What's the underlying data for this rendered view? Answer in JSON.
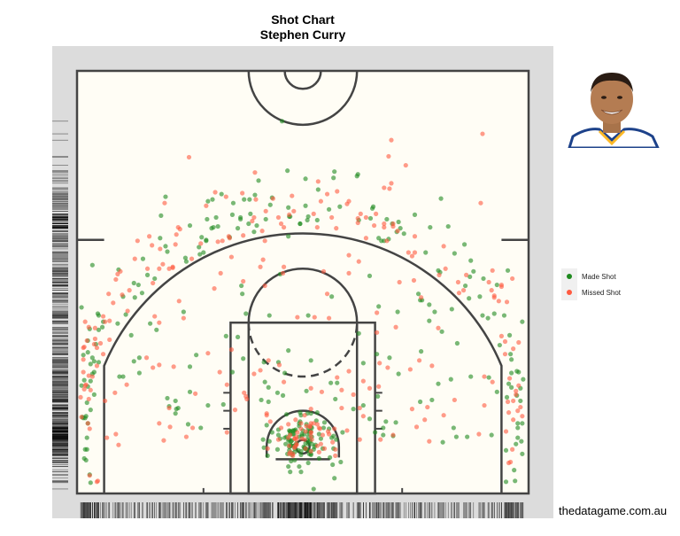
{
  "chart_data": {
    "type": "scatter",
    "title": "Shot Chart",
    "subtitle": "Stephen Curry",
    "legend_position": "right",
    "grid": false,
    "xlim": [
      -250,
      250
    ],
    "ylim": [
      -52,
      418
    ],
    "series": [
      {
        "name": "Made Shot",
        "color": "#1f8a1f",
        "points": []
      },
      {
        "name": "Missed Shot",
        "color": "#ff5a40",
        "points": []
      }
    ]
  },
  "colors": {
    "made": "#1f8a1f",
    "missed": "#ff5a40",
    "court_bg": "#fffdf5",
    "court_lines": "#444444",
    "panel_bg": "#dcdcdc"
  },
  "legend": {
    "made_label": "Made Shot",
    "missed_label": "Missed Shot"
  },
  "photo": {
    "subject": "Stephen Curry headshot",
    "jersey_colors": [
      "#ffffff",
      "#1d428a",
      "#fdb927"
    ]
  },
  "caption": "thedatagame.com.au"
}
